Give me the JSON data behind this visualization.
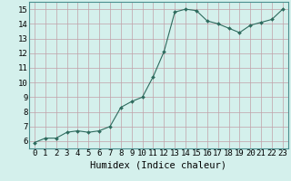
{
  "x": [
    0,
    1,
    2,
    3,
    4,
    5,
    6,
    7,
    8,
    9,
    10,
    11,
    12,
    13,
    14,
    15,
    16,
    17,
    18,
    19,
    20,
    21,
    22,
    23
  ],
  "y": [
    5.9,
    6.2,
    6.2,
    6.6,
    6.7,
    6.6,
    6.7,
    7.0,
    8.3,
    8.7,
    9.0,
    10.4,
    12.1,
    14.8,
    15.0,
    14.9,
    14.2,
    14.0,
    13.7,
    13.4,
    13.9,
    14.1,
    14.3,
    15.0
  ],
  "line_color": "#2e6b5e",
  "marker": "D",
  "marker_size": 2.0,
  "bg_color": "#d4f0ec",
  "plot_bg_color": "#d4f0ec",
  "grid_color": "#c0a0a8",
  "xlabel": "Humidex (Indice chaleur)",
  "xlim": [
    -0.5,
    23.5
  ],
  "ylim": [
    5.5,
    15.5
  ],
  "yticks": [
    6,
    7,
    8,
    9,
    10,
    11,
    12,
    13,
    14,
    15
  ],
  "xticks": [
    0,
    1,
    2,
    3,
    4,
    5,
    6,
    7,
    8,
    9,
    10,
    11,
    12,
    13,
    14,
    15,
    16,
    17,
    18,
    19,
    20,
    21,
    22,
    23
  ],
  "tick_fontsize": 6.5,
  "label_fontsize": 7.5
}
